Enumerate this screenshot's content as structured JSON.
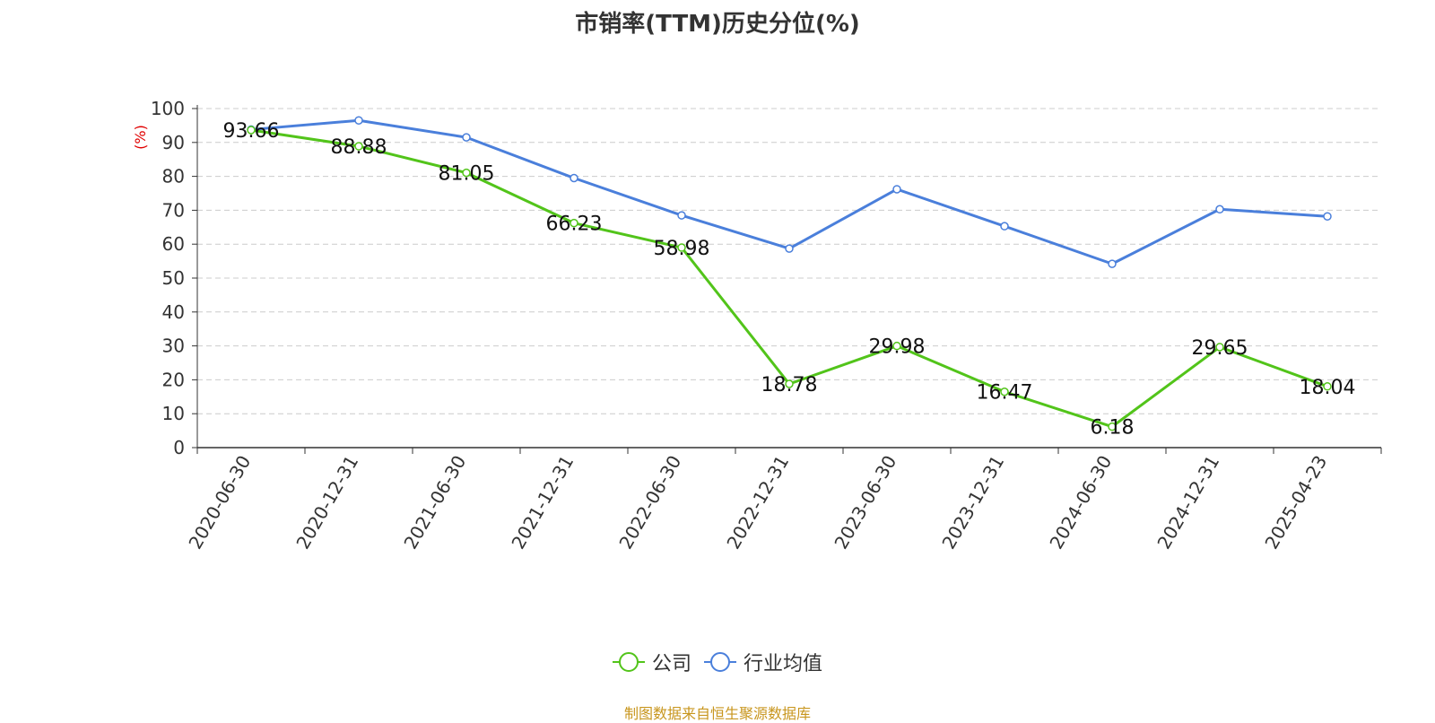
{
  "colors": {
    "company": "#52c41a",
    "industry": "#4a7fdb",
    "axis": "#333333",
    "grid": "#cccccc",
    "ylabel": "#e00000",
    "source": "#c8961e"
  },
  "legend": {
    "company_label": "公司",
    "industry_label": "行业均值",
    "company_icon": "circle-line-icon",
    "industry_icon": "circle-line-icon"
  },
  "source_note": "制图数据来自恒生聚源数据库",
  "chart_data": {
    "type": "line",
    "title": "市销率(TTM)历史分位(%)",
    "ylabel": "(%)",
    "xlabel": "",
    "ylim": [
      0,
      100
    ],
    "yticks": [
      0,
      10,
      20,
      30,
      40,
      50,
      60,
      70,
      80,
      90,
      100
    ],
    "grid": true,
    "legend_position": "bottom-center",
    "categories": [
      "2020-06-30",
      "2020-12-31",
      "2021-06-30",
      "2021-12-31",
      "2022-06-30",
      "2022-12-31",
      "2023-06-30",
      "2023-12-31",
      "2024-06-30",
      "2024-12-31",
      "2025-04-23"
    ],
    "series": [
      {
        "name": "公司",
        "values": [
          93.66,
          88.88,
          81.05,
          66.23,
          58.98,
          18.78,
          29.98,
          16.47,
          6.18,
          29.65,
          18.04
        ],
        "data_labels": [
          "93.66",
          "88.88",
          "81.05",
          "66.23",
          "58.98",
          "18.78",
          "29.98",
          "16.47",
          "6.18",
          "29.65",
          "18.04"
        ]
      },
      {
        "name": "行业均值",
        "values": [
          93.8,
          96.5,
          91.5,
          79.5,
          68.5,
          58.7,
          76.2,
          65.3,
          54.2,
          70.3,
          68.2
        ]
      }
    ]
  }
}
